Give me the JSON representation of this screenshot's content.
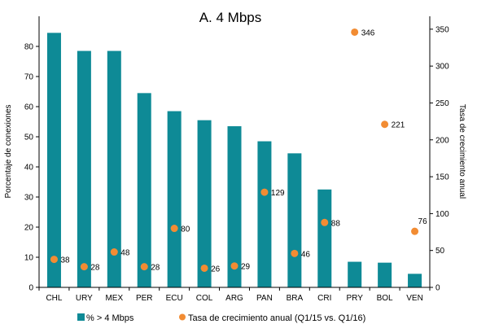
{
  "chart_data": {
    "type": "bar",
    "title": "A. 4 Mbps",
    "ylabel": "Porcentaje de conexiones",
    "y2label": "Tasa de crecimiento anual",
    "categories": [
      "CHL",
      "URY",
      "MEX",
      "PER",
      "ECU",
      "COL",
      "ARG",
      "PAN",
      "BRA",
      "CRI",
      "PRY",
      "BOL",
      "VEN"
    ],
    "ylim": [
      0,
      90
    ],
    "y2lim": [
      0,
      367.5
    ],
    "yticks": [
      0,
      10,
      20,
      30,
      40,
      50,
      60,
      70,
      80
    ],
    "y2ticks": [
      0,
      50,
      100,
      150,
      200,
      250,
      300,
      350
    ],
    "series": [
      {
        "name": "% > 4 Mbps",
        "type": "bar",
        "axis": "left",
        "color": "#0e8a96",
        "values": [
          84.5,
          78.5,
          78.5,
          64.5,
          58.5,
          55.5,
          53.5,
          48.5,
          44.5,
          32.5,
          8.5,
          8.2,
          4.5
        ]
      },
      {
        "name": "Tasa de crecimiento anual (Q1/15 vs. Q1/16)",
        "type": "scatter",
        "axis": "right",
        "color": "#f28c33",
        "values": [
          38,
          28,
          48,
          28,
          80,
          26,
          29,
          129,
          46,
          88,
          346,
          221,
          76
        ],
        "labels": [
          "38",
          "28",
          "48",
          "28",
          "80",
          "26",
          "29",
          "129",
          "46",
          "88",
          "346",
          "221",
          "76"
        ]
      }
    ],
    "grid": false,
    "legend": "bottom"
  }
}
